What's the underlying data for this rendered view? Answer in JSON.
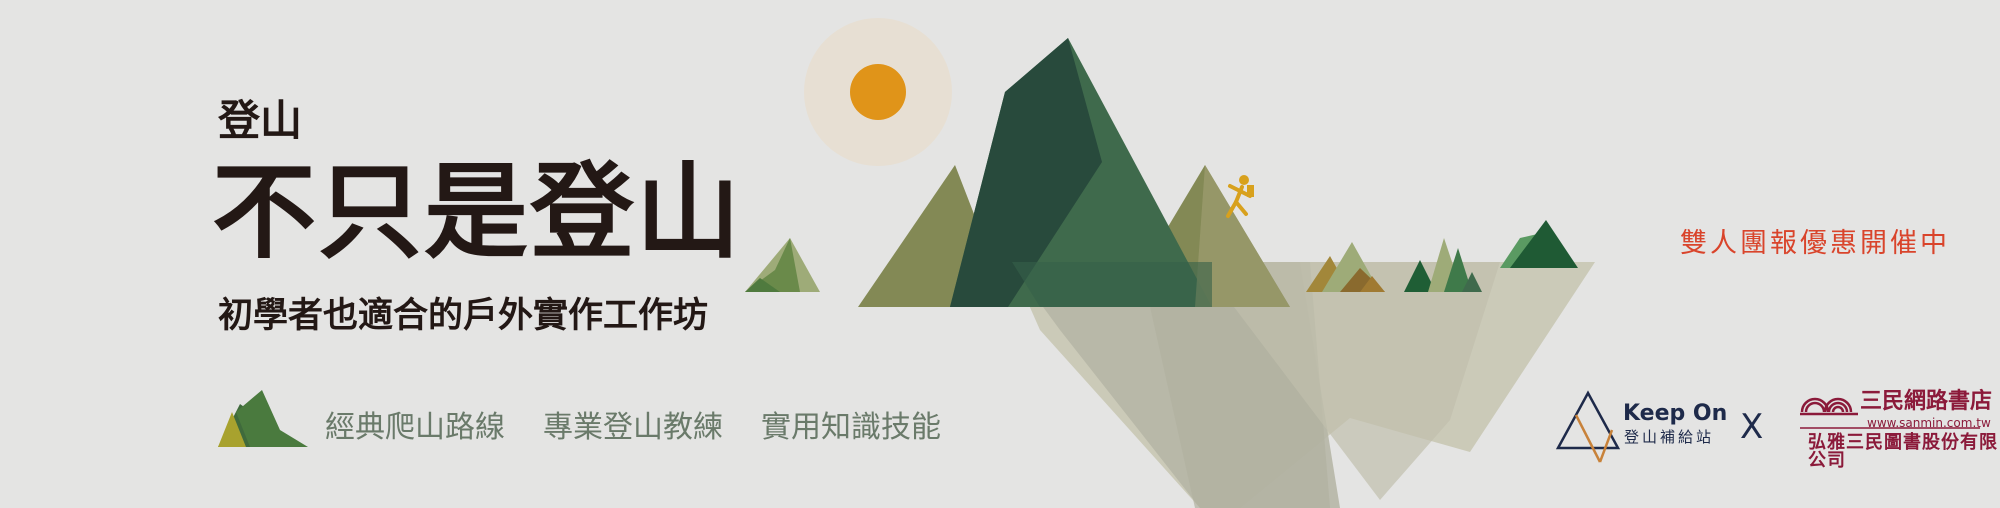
{
  "banner": {
    "kicker": "登山",
    "headline": "不只是登山",
    "subtitle": "初學者也適合的戶外實作工作坊",
    "features": [
      "經典爬山路線",
      "專業登山教練",
      "實用知識技能"
    ],
    "promo": "雙人團報優惠開催中"
  },
  "logos": {
    "keepon_title": "Keep On",
    "keepon_sub": "登山補給站",
    "times": "X",
    "sanmin_name": "三民網路書店",
    "sanmin_url": "www.sanmin.com.tw",
    "sanmin_corp": "弘雅三民圖書股份有限公司"
  },
  "colors": {
    "background": "#e4e4e3",
    "text_dark": "#231815",
    "promo": "#d9442b",
    "sun": "#e09419",
    "mountain_dark": "#284a3c",
    "mountain_green": "#3f6a4c",
    "mountain_olive": "#838955",
    "reflection": "#c8c7b3"
  }
}
